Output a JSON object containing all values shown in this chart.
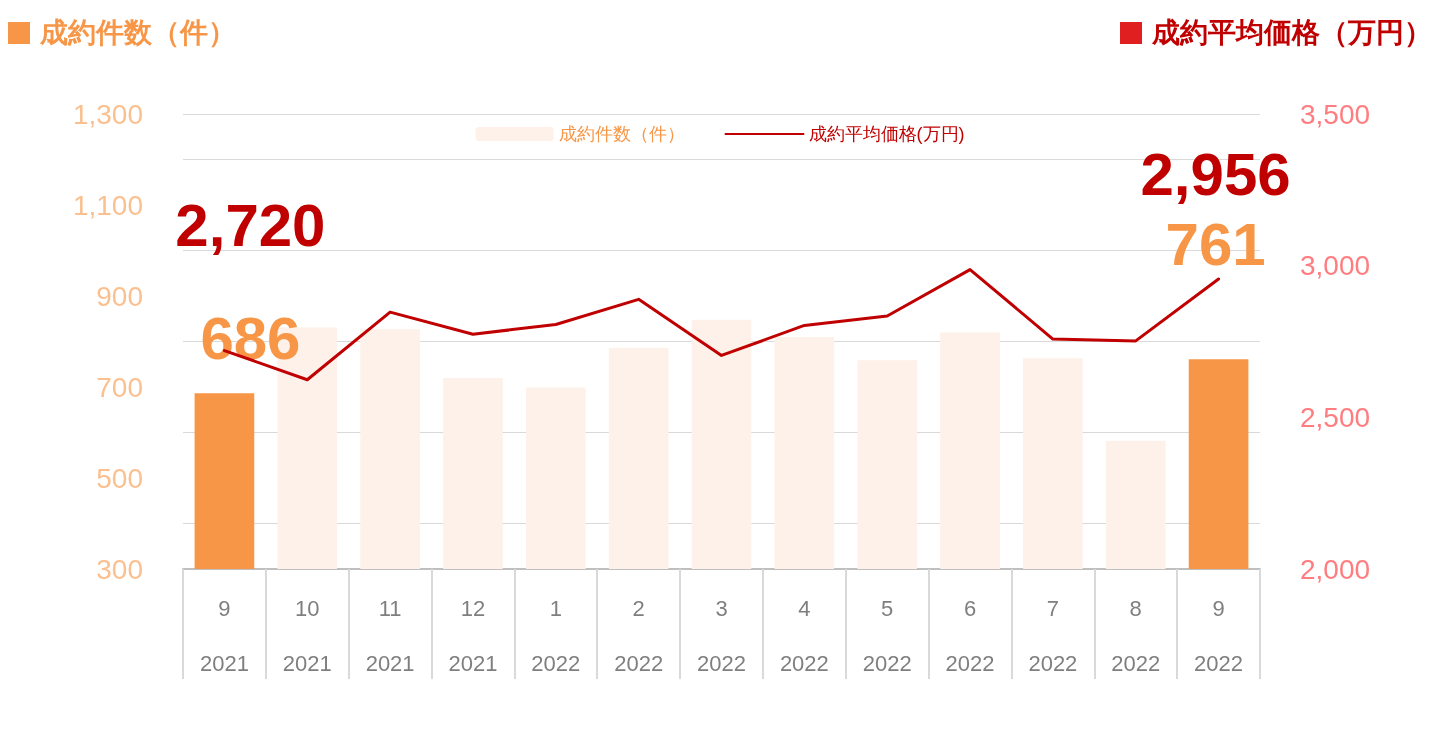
{
  "chart_data": {
    "type": "bar",
    "ylabel": "成約件数（件）",
    "y2label": "成約平均価格（万円）",
    "categories": [
      "9\n2021",
      "10\n2021",
      "11\n2021",
      "12\n2021",
      "1\n2022",
      "2\n2022",
      "3\n2022",
      "4\n2022",
      "5\n2022",
      "6\n2022",
      "7\n2022",
      "8\n2022",
      "9\n2022"
    ],
    "series": [
      {
        "name": "成約件数（件）",
        "color": "#fdf1e9",
        "colors": [
          "#f79646",
          "#fdf1e9",
          "#fdf1e9",
          "#fdf1e9",
          "#fdf1e9",
          "#fdf1e9",
          "#fdf1e9",
          "#fdf1e9",
          "#fdf1e9",
          "#fdf1e9",
          "#fdf1e9",
          "#fdf1e9",
          "#f79646"
        ],
        "values": [
          686,
          831,
          827,
          720,
          699,
          786,
          848,
          810,
          759,
          820,
          763,
          582,
          761
        ],
        "value_labels": [
          "686",
          null,
          null,
          null,
          null,
          null,
          null,
          null,
          null,
          null,
          null,
          null,
          "761"
        ]
      },
      {
        "name": "成約平均価格(万円)",
        "type": "line",
        "axis": "y2",
        "color": "#c00000",
        "values": [
          2720,
          2624,
          2847,
          2774,
          2806,
          2889,
          2704,
          2803,
          2834,
          2987,
          2758,
          2752,
          2956
        ],
        "value_labels": [
          "2,720",
          null,
          null,
          null,
          null,
          null,
          null,
          null,
          null,
          null,
          null,
          null,
          "2,956"
        ]
      }
    ],
    "ylim": [
      300,
      1300
    ],
    "yticks": [
      {
        "value": 300,
        "label": "300"
      },
      {
        "value": 500,
        "label": "500"
      },
      {
        "value": 700,
        "label": "700"
      },
      {
        "value": 900,
        "label": "900"
      },
      {
        "value": 1100,
        "label": "1,100"
      },
      {
        "value": 1300,
        "label": "1,300"
      }
    ],
    "y2lim": [
      2000,
      3500
    ],
    "y2ticks": [
      {
        "value": 2000,
        "label": "2,000"
      },
      {
        "value": 2500,
        "label": "2,500"
      },
      {
        "value": 3000,
        "label": "3,000"
      },
      {
        "value": 3500,
        "label": "3,500"
      }
    ],
    "grid": "y",
    "legend": "top",
    "marker": "none",
    "line_style": "solid"
  }
}
